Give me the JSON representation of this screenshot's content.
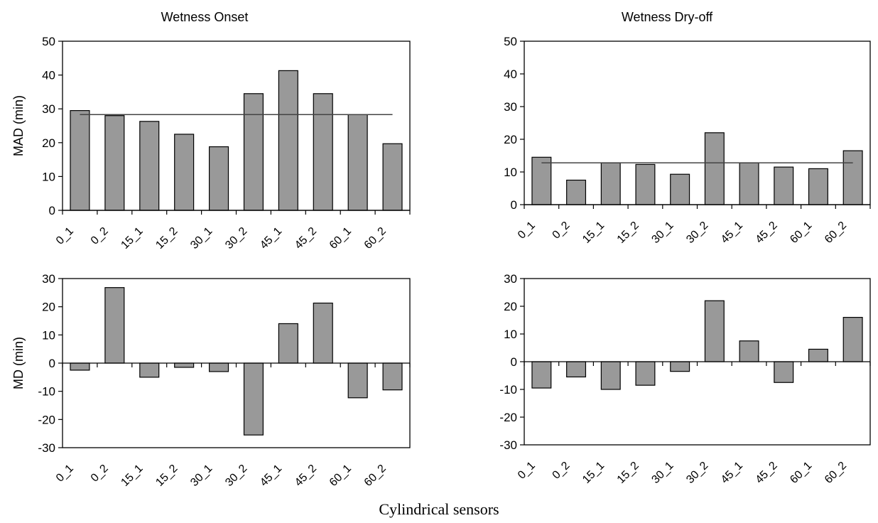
{
  "figure": {
    "shared_xlabel": "Cylindrical sensors"
  },
  "chart_data": [
    {
      "type": "bar",
      "title": "Wetness Onset",
      "ylabel": "MAD (min)",
      "xlabel": "",
      "categories": [
        "0_1",
        "0_2",
        "15_1",
        "15_2",
        "30_1",
        "30_2",
        "45_1",
        "45_2",
        "60_1",
        "60_2"
      ],
      "values": [
        29.5,
        28,
        26.3,
        22.5,
        18.8,
        34.5,
        41.3,
        34.5,
        28.3,
        19.7
      ],
      "reference_line": 28.3,
      "ylim": [
        0,
        50
      ],
      "yticks": [
        0,
        10,
        20,
        30,
        40,
        50
      ],
      "grid": false,
      "bar_color": "#999999"
    },
    {
      "type": "bar",
      "title": "Wetness Dry-off",
      "ylabel": "",
      "xlabel": "",
      "categories": [
        "0_1",
        "0_2",
        "15_1",
        "15_2",
        "30_1",
        "30_2",
        "45_1",
        "45_2",
        "60_1",
        "60_2"
      ],
      "values": [
        14.5,
        7.5,
        12.8,
        12.3,
        9.3,
        22,
        12.8,
        11.5,
        11,
        16.5
      ],
      "reference_line": 12.8,
      "ylim": [
        0,
        50
      ],
      "yticks": [
        0,
        10,
        20,
        30,
        40,
        50
      ],
      "grid": false,
      "bar_color": "#999999"
    },
    {
      "type": "bar",
      "title": "",
      "ylabel": "MD (min)",
      "xlabel": "",
      "categories": [
        "0_1",
        "0_2",
        "15_1",
        "15_2",
        "30_1",
        "30_2",
        "45_1",
        "45_2",
        "60_1",
        "60_2"
      ],
      "values": [
        -2.5,
        26.8,
        -5,
        -1.5,
        -3,
        -25.5,
        14,
        21.3,
        -12.3,
        -9.5
      ],
      "ylim": [
        -30,
        30
      ],
      "yticks": [
        -30,
        -20,
        -10,
        0,
        10,
        20,
        30
      ],
      "grid": false,
      "bar_color": "#999999"
    },
    {
      "type": "bar",
      "title": "",
      "ylabel": "",
      "xlabel": "",
      "categories": [
        "0_1",
        "0_2",
        "15_1",
        "15_2",
        "30_1",
        "30_2",
        "45_1",
        "45_2",
        "60_1",
        "60_2"
      ],
      "values": [
        -9.5,
        -5.5,
        -10,
        -8.5,
        -3.5,
        22,
        7.5,
        -7.5,
        4.5,
        16
      ],
      "ylim": [
        -30,
        30
      ],
      "yticks": [
        -30,
        -20,
        -10,
        0,
        10,
        20,
        30
      ],
      "grid": false,
      "bar_color": "#999999"
    }
  ]
}
